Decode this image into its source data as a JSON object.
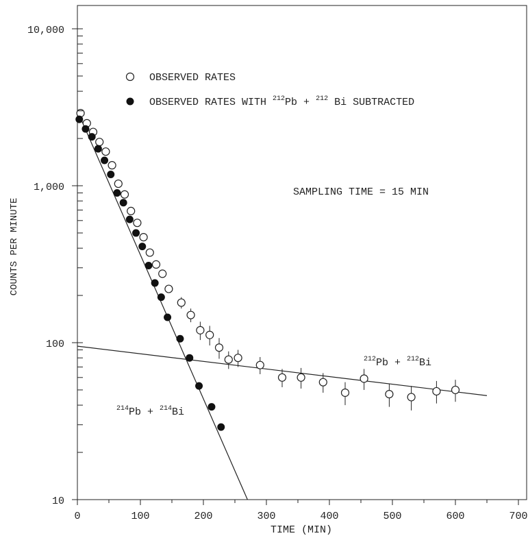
{
  "chart_data": {
    "type": "scatter",
    "xlabel": "TIME (MIN)",
    "ylabel": "COUNTS PER MINUTE",
    "xlim": [
      0,
      720
    ],
    "ylim": [
      10,
      12000
    ],
    "y_scale": "log",
    "x_ticks": [
      0,
      100,
      200,
      300,
      400,
      500,
      600,
      700
    ],
    "x_tick_labels": [
      "0",
      "100",
      "200",
      "300",
      "400",
      "500",
      "600",
      "700"
    ],
    "y_ticks": [
      10,
      100,
      1000,
      10000
    ],
    "y_tick_labels": [
      "10",
      "100",
      "1,000",
      "10,000"
    ],
    "legend_position": "top-left",
    "legend": [
      {
        "marker": "open-circle",
        "label": "OBSERVED RATES"
      },
      {
        "marker": "filled-circle",
        "label_parts": [
          "OBSERVED RATES WITH ",
          "212",
          "Pb + ",
          "212",
          " Bi SUBTRACTED"
        ]
      }
    ],
    "annotations": [
      {
        "id": "sampling",
        "text": "SAMPLING TIME = 15 MIN"
      },
      {
        "id": "pb212",
        "parts": [
          "212",
          "Pb + ",
          "212",
          "Bi"
        ]
      },
      {
        "id": "pb214",
        "parts": [
          "214",
          "Pb + ",
          "214",
          "Bi"
        ]
      }
    ],
    "series": [
      {
        "marker": "open-circle",
        "x": [
          5,
          15,
          25,
          35,
          45,
          55,
          65,
          75,
          85,
          95,
          105,
          115,
          125,
          135,
          145,
          165,
          180,
          195,
          210,
          225,
          240,
          255,
          290,
          325,
          355,
          390,
          425,
          455,
          495,
          530,
          570,
          600
        ],
        "y": [
          2900,
          2500,
          2200,
          1900,
          1650,
          1350,
          1030,
          880,
          690,
          580,
          470,
          375,
          315,
          275,
          220,
          180,
          150,
          120,
          112,
          93,
          78,
          80,
          72,
          60,
          60,
          56,
          48,
          59,
          47,
          45,
          49,
          50
        ],
        "y_err": [
          0,
          0,
          0,
          0,
          0,
          0,
          0,
          0,
          0,
          0,
          0,
          0,
          0,
          0,
          0,
          15,
          15,
          16,
          16,
          14,
          10,
          10,
          9,
          8,
          9,
          8,
          8,
          9,
          8,
          8,
          8,
          8
        ]
      },
      {
        "marker": "filled-circle",
        "x": [
          3,
          13,
          23,
          33,
          43,
          53,
          63,
          73,
          83,
          93,
          103,
          113,
          123,
          133,
          143,
          163,
          178,
          193,
          213,
          228
        ],
        "y": [
          2650,
          2300,
          2050,
          1720,
          1450,
          1180,
          900,
          780,
          610,
          500,
          410,
          310,
          240,
          195,
          145,
          106,
          80,
          53,
          39,
          29
        ]
      }
    ],
    "fit_lines": [
      {
        "label": "212Pb + 212Bi",
        "x": [
          0,
          650
        ],
        "y": [
          95,
          46
        ]
      },
      {
        "label": "214Pb + 214Bi",
        "x": [
          0,
          270
        ],
        "y": [
          3000,
          10
        ]
      }
    ]
  }
}
